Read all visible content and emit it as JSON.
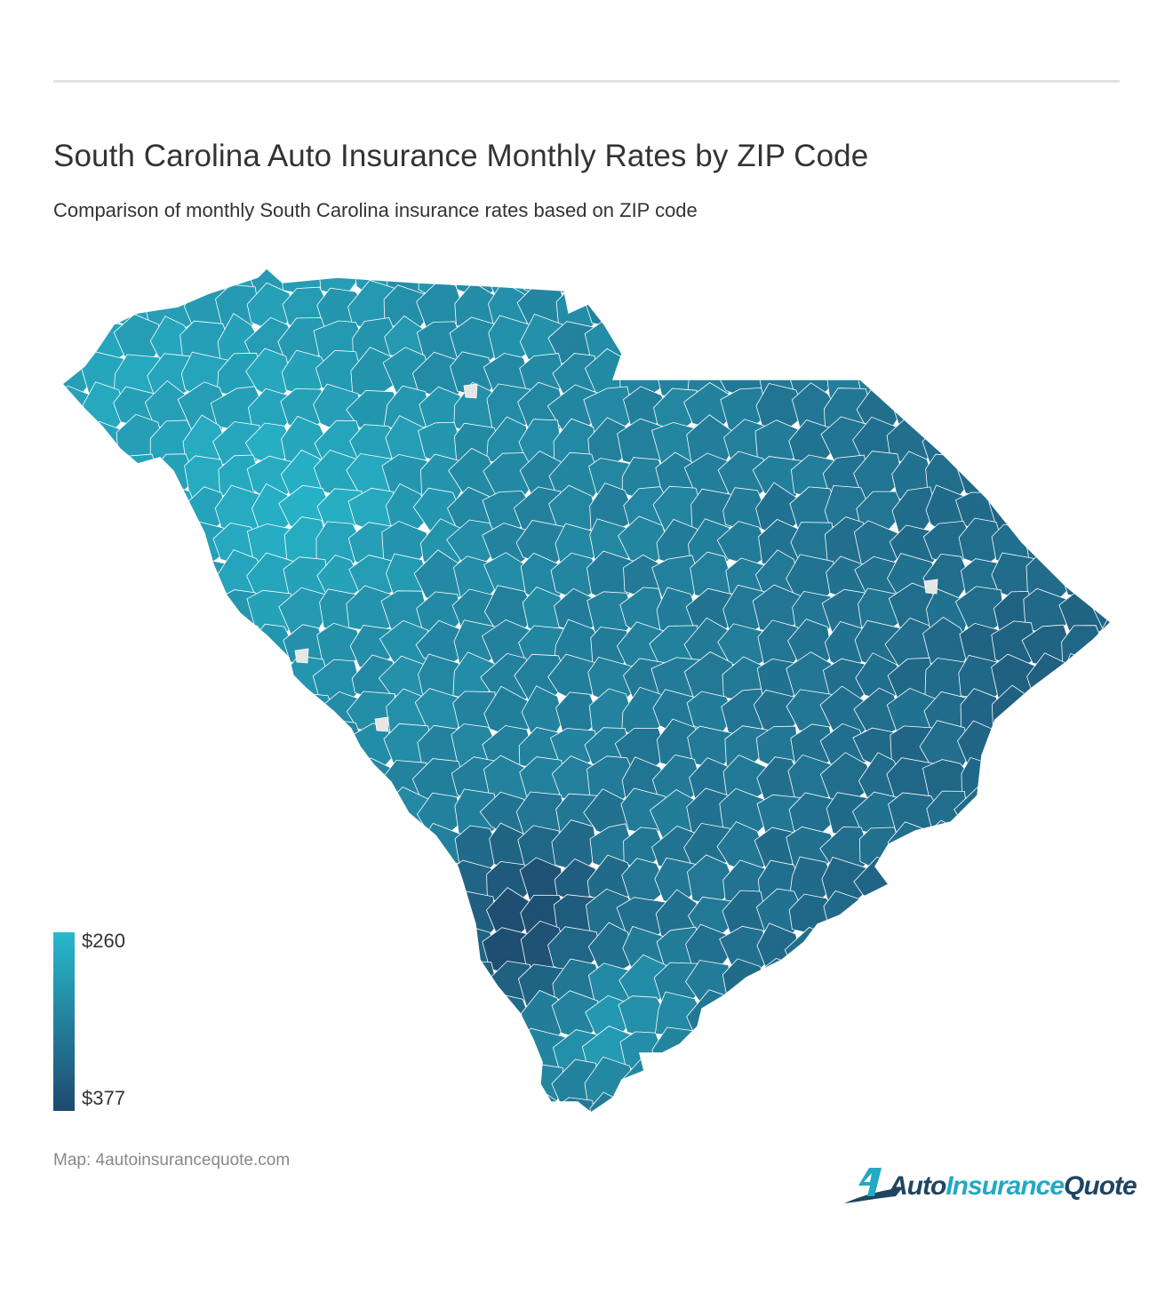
{
  "header": {
    "title": "South Carolina Auto Insurance Monthly Rates by ZIP Code",
    "subtitle": "Comparison of monthly South Carolina insurance rates based on ZIP code"
  },
  "map": {
    "region": "South Carolina",
    "colors": {
      "low": "#27b8cc",
      "high": "#1e4a6e",
      "border": "#ffffff",
      "no_data": "#e6e6e6"
    }
  },
  "legend": {
    "max_label": "$260",
    "min_label": "$377",
    "gradient_top": "#27b8cc",
    "gradient_bottom": "#1e4a6e"
  },
  "footer": {
    "source": "Map: 4autoinsurancequote.com"
  },
  "logo": {
    "prefix": "4",
    "word1": "Auto",
    "word2": "Insurance",
    "word3": "Quote",
    "icon": "swoosh-4-icon"
  }
}
